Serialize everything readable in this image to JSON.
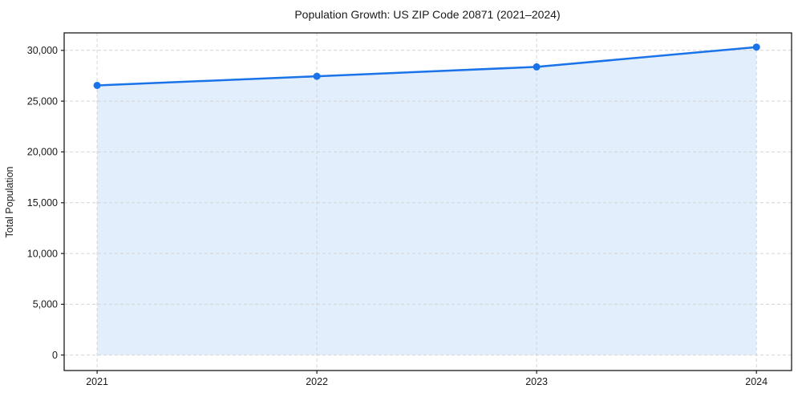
{
  "page": {
    "background": "#ffffff"
  },
  "chart_data": {
    "type": "line",
    "title": "Population Growth: US ZIP Code 20871 (2021–2024)",
    "xlabel": "",
    "ylabel": "Total Population",
    "x": [
      2021,
      2022,
      2023,
      2024
    ],
    "series": [
      {
        "name": "Total Population",
        "values": [
          26550,
          27450,
          28370,
          30320
        ]
      }
    ],
    "xticks": [
      2021,
      2022,
      2023,
      2024
    ],
    "xtick_labels": [
      "2021",
      "2022",
      "2023",
      "2024"
    ],
    "yticks": [
      0,
      5000,
      10000,
      15000,
      20000,
      25000,
      30000
    ],
    "ytick_labels": [
      "0",
      "5,000",
      "10,000",
      "15,000",
      "20,000",
      "25,000",
      "30,000"
    ],
    "xlim": [
      2020.85,
      2024.16
    ],
    "ylim": [
      -1520,
      31720
    ],
    "grid": true,
    "grid_style": "dashed",
    "legend": "none",
    "fill_to": 0,
    "marker": "circle",
    "line_color": "#1a73e8",
    "fill_color": "rgba(26,115,232,0.12)",
    "grid_color": "#d4d4d4",
    "axis_color": "#1a1a1a",
    "text_color": "#1a1a1a"
  }
}
